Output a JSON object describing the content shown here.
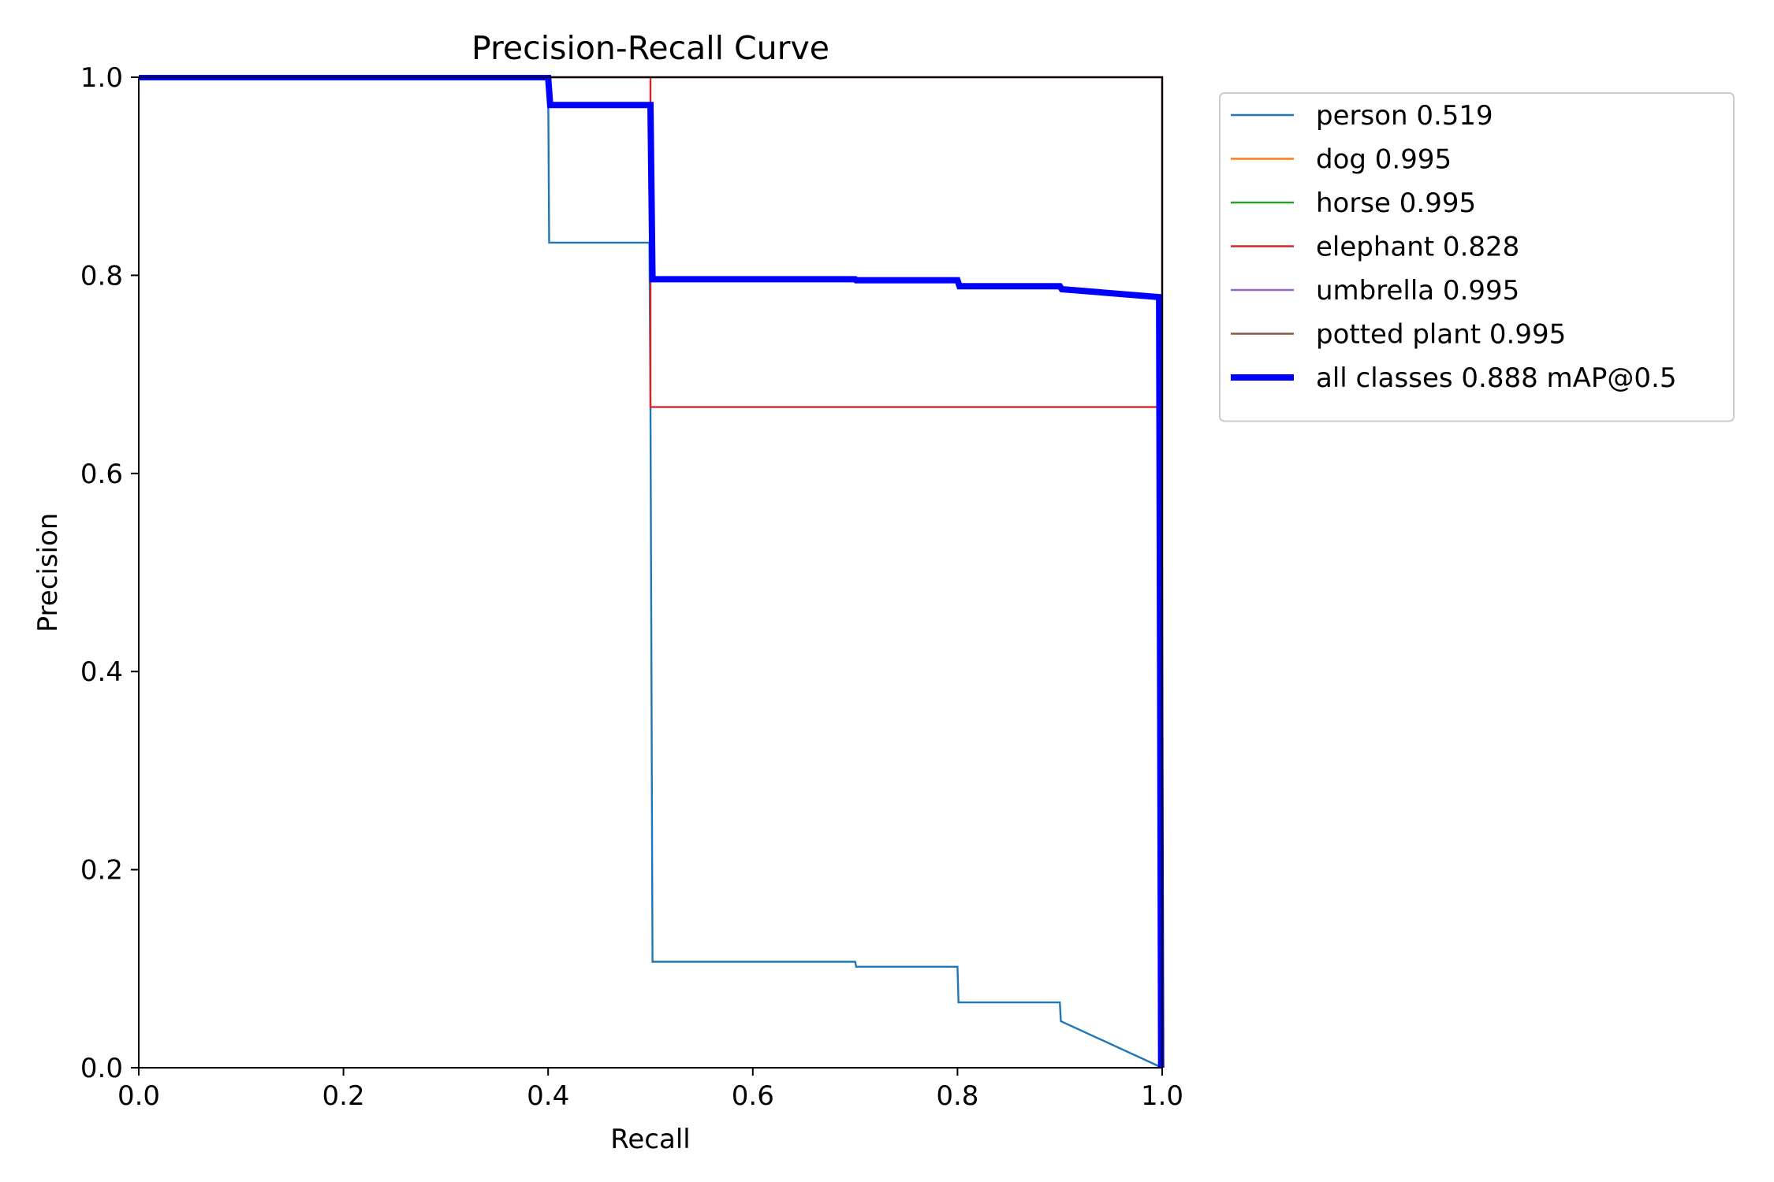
{
  "chart_data": {
    "type": "line",
    "title": "Precision-Recall Curve",
    "xlabel": "Recall",
    "ylabel": "Precision",
    "xlim": [
      0,
      1
    ],
    "ylim": [
      0,
      1
    ],
    "grid": false,
    "legend_position": "outside-top-right",
    "x_ticks": [
      "0.0",
      "0.2",
      "0.4",
      "0.6",
      "0.8",
      "1.0"
    ],
    "y_ticks": [
      "0.0",
      "0.2",
      "0.4",
      "0.6",
      "0.8",
      "1.0"
    ],
    "series": [
      {
        "name": "person 0.519",
        "color": "#1f77b4",
        "width": "thin",
        "points": [
          [
            0,
            1
          ],
          [
            0.4,
            1
          ],
          [
            0.401,
            0.833
          ],
          [
            0.499,
            0.833
          ],
          [
            0.5,
            0.667
          ],
          [
            0.502,
            0.107
          ],
          [
            0.7,
            0.107
          ],
          [
            0.701,
            0.102
          ],
          [
            0.8,
            0.102
          ],
          [
            0.801,
            0.066
          ],
          [
            0.9,
            0.066
          ],
          [
            0.901,
            0.047
          ],
          [
            1.0,
            0.0
          ]
        ]
      },
      {
        "name": "dog 0.995",
        "color": "#ff7f0e",
        "width": "thin",
        "points": [
          [
            0,
            1
          ],
          [
            1,
            1
          ],
          [
            1,
            0
          ]
        ]
      },
      {
        "name": "horse 0.995",
        "color": "#2ca02c",
        "width": "thin",
        "points": [
          [
            0,
            1
          ],
          [
            1,
            1
          ],
          [
            1,
            0
          ]
        ]
      },
      {
        "name": "elephant 0.828",
        "color": "#d62728",
        "width": "thin",
        "points": [
          [
            0,
            1
          ],
          [
            0.5,
            1
          ],
          [
            0.5,
            0.667
          ],
          [
            0.997,
            0.667
          ],
          [
            0.999,
            0
          ]
        ]
      },
      {
        "name": "umbrella 0.995",
        "color": "#9467bd",
        "width": "thin",
        "points": [
          [
            0,
            1
          ],
          [
            1,
            1
          ],
          [
            1,
            0
          ]
        ]
      },
      {
        "name": "potted plant 0.995",
        "color": "#8c564b",
        "width": "thin",
        "points": [
          [
            0,
            1
          ],
          [
            1,
            1
          ],
          [
            1,
            0
          ]
        ]
      },
      {
        "name": "all classes 0.888 mAP@0.5",
        "color": "#0000ff",
        "width": "thick",
        "points": [
          [
            0,
            1
          ],
          [
            0.4,
            1
          ],
          [
            0.402,
            0.972
          ],
          [
            0.5,
            0.972
          ],
          [
            0.502,
            0.796
          ],
          [
            0.7,
            0.796
          ],
          [
            0.701,
            0.795
          ],
          [
            0.8,
            0.795
          ],
          [
            0.802,
            0.789
          ],
          [
            0.9,
            0.789
          ],
          [
            0.902,
            0.786
          ],
          [
            0.997,
            0.778
          ],
          [
            0.999,
            0
          ]
        ]
      }
    ]
  }
}
